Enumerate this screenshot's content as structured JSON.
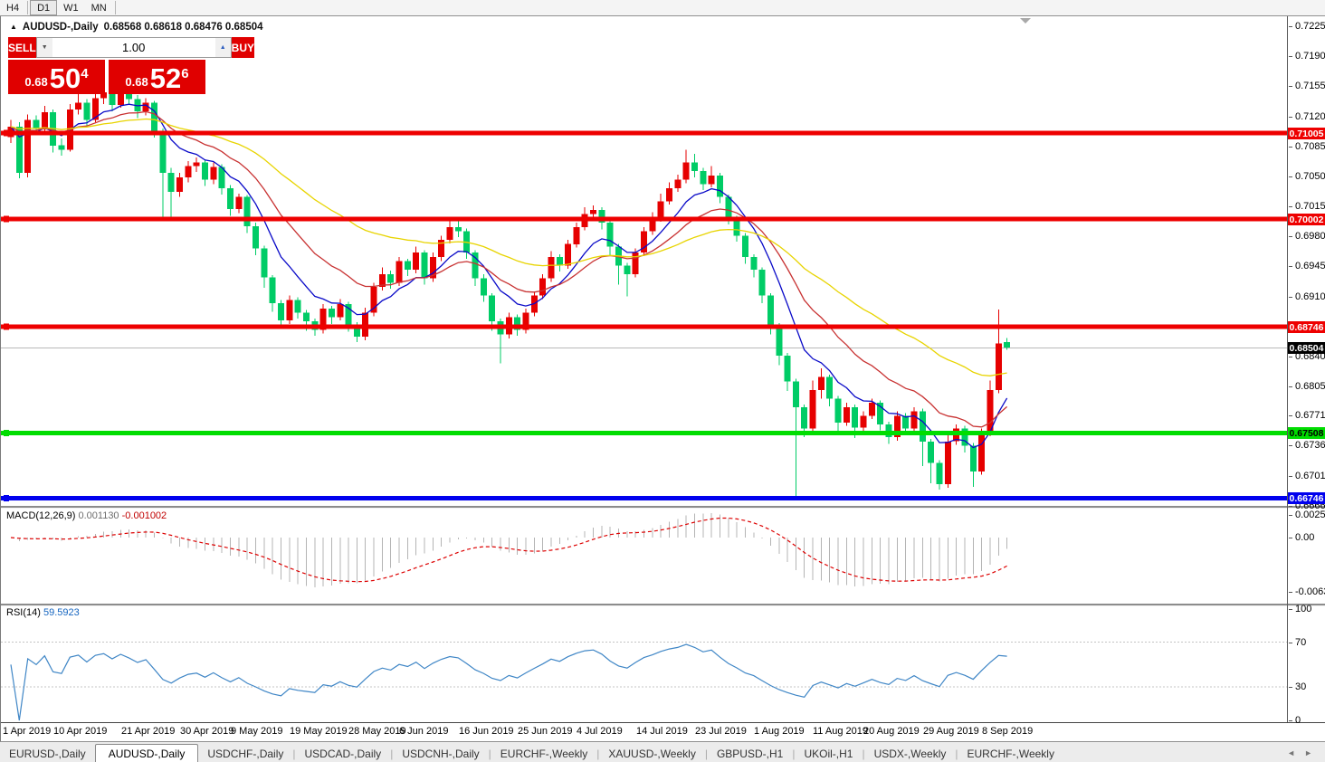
{
  "toolbar": {
    "timeframes": [
      "H4",
      "D1",
      "W1",
      "MN"
    ],
    "active": "D1"
  },
  "chart": {
    "collapse_icon": "▲",
    "title_symbol": "AUDUSD-,Daily",
    "title_ohlc": "0.68568 0.68618 0.68476 0.68504"
  },
  "trade_panel": {
    "sell_label": "SELL",
    "buy_label": "BUY",
    "volume": "1.00",
    "spin_down": "▼",
    "spin_up": "▲",
    "sell_price": {
      "small": "0.68",
      "big": "50",
      "sup": "4"
    },
    "buy_price": {
      "small": "0.68",
      "big": "52",
      "sup": "6"
    }
  },
  "price_axis": {
    "ticks": [
      "0.72250",
      "0.71900",
      "0.71550",
      "0.71200",
      "0.70850",
      "0.70500",
      "0.70150",
      "0.69800",
      "0.69450",
      "0.69100",
      "0.68750",
      "0.68400",
      "0.68050",
      "0.67710",
      "0.67360",
      "0.67010",
      "0.66660"
    ]
  },
  "current_price": {
    "value": 0.68504,
    "label": "0.68504",
    "bg": "#000000",
    "fg": "#ffffff"
  },
  "sr_lines": [
    {
      "value": 0.71005,
      "label": "0.71005",
      "color": "#ee0000",
      "text": "#ffffff"
    },
    {
      "value": 0.70002,
      "label": "0.70002",
      "color": "#ee0000",
      "text": "#ffffff"
    },
    {
      "value": 0.68746,
      "label": "0.68746",
      "color": "#ee0000",
      "text": "#ffffff"
    },
    {
      "value": 0.67508,
      "label": "0.67508",
      "color": "#00dd00",
      "text": "#000000"
    },
    {
      "value": 0.66746,
      "label": "0.66746",
      "color": "#0000ee",
      "text": "#ffffff"
    }
  ],
  "macd_panel": {
    "name": "MACD(12,26,9)",
    "value1": "0.001130",
    "value2": "-0.001002",
    "axis": [
      "0.002574",
      "0.00",
      "-0.006326"
    ],
    "histogram_color": "#b4b4b4",
    "signal_color": "#dd0000"
  },
  "rsi_panel": {
    "name": "RSI(14)",
    "value": "59.5923",
    "axis": [
      "100",
      "70",
      "30",
      "0"
    ],
    "levels": [
      70,
      30
    ],
    "line_color": "#3f86c6"
  },
  "date_axis": [
    {
      "label": "1 Apr 2019",
      "i": 0
    },
    {
      "label": "10 Apr 2019",
      "i": 6
    },
    {
      "label": "21 Apr 2019",
      "i": 14
    },
    {
      "label": "30 Apr 2019",
      "i": 21
    },
    {
      "label": "9 May 2019",
      "i": 27
    },
    {
      "label": "19 May 2019",
      "i": 34
    },
    {
      "label": "28 May 2019",
      "i": 41
    },
    {
      "label": "6 Jun 2019",
      "i": 47
    },
    {
      "label": "16 Jun 2019",
      "i": 54
    },
    {
      "label": "25 Jun 2019",
      "i": 61
    },
    {
      "label": "4 Jul 2019",
      "i": 68
    },
    {
      "label": "14 Jul 2019",
      "i": 75
    },
    {
      "label": "23 Jul 2019",
      "i": 82
    },
    {
      "label": "1 Aug 2019",
      "i": 89
    },
    {
      "label": "11 Aug 2019",
      "i": 96
    },
    {
      "label": "20 Aug 2019",
      "i": 102
    },
    {
      "label": "29 Aug 2019",
      "i": 109
    },
    {
      "label": "8 Sep 2019",
      "i": 116
    }
  ],
  "tabs": {
    "items": [
      "EURUSD-,Daily",
      "AUDUSD-,Daily",
      "USDCHF-,Daily",
      "USDCAD-,Daily",
      "USDCNH-,Daily",
      "EURCHF-,Weekly",
      "XAUUSD-,Weekly",
      "GBPUSD-,H1",
      "UKOil-,H1",
      "USDX-,Weekly",
      "EURCHF-,Weekly"
    ],
    "active_index": 1,
    "scroll_left": "◄",
    "scroll_right": "►"
  },
  "chart_data": {
    "type": "candlestick",
    "symbol": "AUDUSD",
    "timeframe": "Daily",
    "bull_color": "#e60000",
    "bear_color": "#00cc66",
    "price_range_top": 0.72334,
    "price_range_bottom": 0.6666,
    "indicators": {
      "moving_averages": [
        {
          "period": 8,
          "color": "#0a0ac8"
        },
        {
          "period": 17,
          "color": "#c83232"
        },
        {
          "period": 40,
          "color": "#e8d400"
        }
      ],
      "macd": {
        "fast": 12,
        "slow": 26,
        "signal": 9
      },
      "rsi": {
        "period": 14
      }
    },
    "ohlc": [
      [
        0.7096,
        0.7116,
        0.7089,
        0.7108
      ],
      [
        0.7108,
        0.7113,
        0.7048,
        0.7054
      ],
      [
        0.7054,
        0.7122,
        0.7049,
        0.7116
      ],
      [
        0.7116,
        0.7121,
        0.7098,
        0.7105
      ],
      [
        0.7105,
        0.7132,
        0.7101,
        0.7125
      ],
      [
        0.7125,
        0.7128,
        0.7078,
        0.7086
      ],
      [
        0.7086,
        0.7094,
        0.7074,
        0.7081
      ],
      [
        0.7081,
        0.7134,
        0.7079,
        0.7128
      ],
      [
        0.7128,
        0.7146,
        0.7122,
        0.7136
      ],
      [
        0.7136,
        0.714,
        0.7108,
        0.7116
      ],
      [
        0.7116,
        0.715,
        0.7113,
        0.7141
      ],
      [
        0.7141,
        0.7153,
        0.7134,
        0.7148
      ],
      [
        0.7148,
        0.7152,
        0.7126,
        0.7133
      ],
      [
        0.7133,
        0.7157,
        0.713,
        0.7151
      ],
      [
        0.7151,
        0.7154,
        0.7133,
        0.714
      ],
      [
        0.714,
        0.7145,
        0.7118,
        0.7126
      ],
      [
        0.7126,
        0.7141,
        0.7121,
        0.7136
      ],
      [
        0.7136,
        0.7138,
        0.7095,
        0.7102
      ],
      [
        0.7102,
        0.7106,
        0.7,
        0.7054
      ],
      [
        0.7054,
        0.706,
        0.7002,
        0.7032
      ],
      [
        0.7032,
        0.7054,
        0.7026,
        0.7049
      ],
      [
        0.7049,
        0.7068,
        0.7043,
        0.7062
      ],
      [
        0.7062,
        0.7072,
        0.7055,
        0.7066
      ],
      [
        0.7066,
        0.7069,
        0.7039,
        0.7046
      ],
      [
        0.7046,
        0.7066,
        0.7041,
        0.7061
      ],
      [
        0.7061,
        0.7064,
        0.7029,
        0.7036
      ],
      [
        0.7036,
        0.704,
        0.7004,
        0.7012
      ],
      [
        0.7012,
        0.703,
        0.7007,
        0.7026
      ],
      [
        0.7026,
        0.7028,
        0.6984,
        0.6992
      ],
      [
        0.6992,
        0.6996,
        0.6958,
        0.6966
      ],
      [
        0.6966,
        0.6969,
        0.692,
        0.6932
      ],
      [
        0.6932,
        0.6935,
        0.6892,
        0.6902
      ],
      [
        0.6902,
        0.6906,
        0.6874,
        0.6882
      ],
      [
        0.6882,
        0.6911,
        0.6878,
        0.6906
      ],
      [
        0.6906,
        0.6909,
        0.6884,
        0.6891
      ],
      [
        0.6891,
        0.6894,
        0.687,
        0.6881
      ],
      [
        0.6881,
        0.6884,
        0.6864,
        0.6871
      ],
      [
        0.6871,
        0.6901,
        0.6867,
        0.6896
      ],
      [
        0.6896,
        0.6899,
        0.6878,
        0.6886
      ],
      [
        0.6886,
        0.6907,
        0.6882,
        0.6901
      ],
      [
        0.6901,
        0.6904,
        0.6869,
        0.6876
      ],
      [
        0.6876,
        0.688,
        0.6857,
        0.6863
      ],
      [
        0.6863,
        0.6897,
        0.6859,
        0.6891
      ],
      [
        0.6891,
        0.6926,
        0.6887,
        0.6921
      ],
      [
        0.6921,
        0.6944,
        0.6917,
        0.6936
      ],
      [
        0.6936,
        0.694,
        0.6919,
        0.6926
      ],
      [
        0.6926,
        0.6956,
        0.6922,
        0.6951
      ],
      [
        0.6951,
        0.6954,
        0.6934,
        0.6941
      ],
      [
        0.6941,
        0.6968,
        0.6937,
        0.6961
      ],
      [
        0.6961,
        0.6964,
        0.6924,
        0.6931
      ],
      [
        0.6931,
        0.6961,
        0.6927,
        0.6956
      ],
      [
        0.6956,
        0.6981,
        0.6951,
        0.6976
      ],
      [
        0.6976,
        0.6999,
        0.6972,
        0.6991
      ],
      [
        0.6991,
        0.7,
        0.6979,
        0.6986
      ],
      [
        0.6986,
        0.6989,
        0.6954,
        0.6961
      ],
      [
        0.6961,
        0.6964,
        0.6922,
        0.6931
      ],
      [
        0.6931,
        0.6936,
        0.6904,
        0.6911
      ],
      [
        0.6911,
        0.6914,
        0.687,
        0.6881
      ],
      [
        0.6881,
        0.6884,
        0.6832,
        0.6866
      ],
      [
        0.6866,
        0.6891,
        0.6861,
        0.6886
      ],
      [
        0.6886,
        0.6889,
        0.6864,
        0.6871
      ],
      [
        0.6871,
        0.6896,
        0.6867,
        0.6891
      ],
      [
        0.6891,
        0.6916,
        0.6887,
        0.6911
      ],
      [
        0.6911,
        0.6936,
        0.6907,
        0.6931
      ],
      [
        0.6931,
        0.6963,
        0.6927,
        0.6956
      ],
      [
        0.6956,
        0.6959,
        0.6939,
        0.6946
      ],
      [
        0.6946,
        0.6976,
        0.6942,
        0.6971
      ],
      [
        0.6971,
        0.6996,
        0.6967,
        0.6991
      ],
      [
        0.6991,
        0.7014,
        0.6987,
        0.7006
      ],
      [
        0.7006,
        0.7016,
        0.6999,
        0.7011
      ],
      [
        0.7011,
        0.7014,
        0.6988,
        0.6996
      ],
      [
        0.6996,
        0.6999,
        0.6958,
        0.6968
      ],
      [
        0.6968,
        0.6971,
        0.6924,
        0.6946
      ],
      [
        0.6946,
        0.6949,
        0.691,
        0.6936
      ],
      [
        0.6936,
        0.6966,
        0.6932,
        0.6961
      ],
      [
        0.6961,
        0.6991,
        0.6957,
        0.6986
      ],
      [
        0.6986,
        0.7008,
        0.6982,
        0.7001
      ],
      [
        0.7001,
        0.703,
        0.6997,
        0.7021
      ],
      [
        0.7021,
        0.7043,
        0.7017,
        0.7036
      ],
      [
        0.7036,
        0.7052,
        0.7032,
        0.7046
      ],
      [
        0.7046,
        0.7081,
        0.7042,
        0.7066
      ],
      [
        0.7066,
        0.7076,
        0.7049,
        0.7056
      ],
      [
        0.7056,
        0.706,
        0.7034,
        0.7041
      ],
      [
        0.7041,
        0.7062,
        0.7037,
        0.7051
      ],
      [
        0.7051,
        0.7054,
        0.7019,
        0.7026
      ],
      [
        0.7026,
        0.7029,
        0.6994,
        0.7001
      ],
      [
        0.7001,
        0.7004,
        0.6974,
        0.6981
      ],
      [
        0.6981,
        0.6984,
        0.6948,
        0.6956
      ],
      [
        0.6956,
        0.6959,
        0.6932,
        0.6941
      ],
      [
        0.6941,
        0.6944,
        0.6902,
        0.6911
      ],
      [
        0.6911,
        0.6914,
        0.6866,
        0.6876
      ],
      [
        0.6876,
        0.6879,
        0.683,
        0.6841
      ],
      [
        0.6841,
        0.6844,
        0.68,
        0.6811
      ],
      [
        0.6811,
        0.6814,
        0.6677,
        0.6781
      ],
      [
        0.6781,
        0.6784,
        0.6746,
        0.6756
      ],
      [
        0.6756,
        0.6812,
        0.6752,
        0.6801
      ],
      [
        0.6801,
        0.6826,
        0.6791,
        0.6816
      ],
      [
        0.6816,
        0.6819,
        0.6782,
        0.6791
      ],
      [
        0.6791,
        0.6794,
        0.675,
        0.6763
      ],
      [
        0.6763,
        0.6786,
        0.6759,
        0.6781
      ],
      [
        0.6781,
        0.6784,
        0.6745,
        0.6757
      ],
      [
        0.6757,
        0.6776,
        0.6753,
        0.6771
      ],
      [
        0.6771,
        0.6791,
        0.6767,
        0.6786
      ],
      [
        0.6786,
        0.6789,
        0.6754,
        0.6761
      ],
      [
        0.6761,
        0.6764,
        0.6738,
        0.6746
      ],
      [
        0.6746,
        0.6776,
        0.6742,
        0.6771
      ],
      [
        0.6771,
        0.6774,
        0.6748,
        0.6756
      ],
      [
        0.6756,
        0.6781,
        0.6752,
        0.6776
      ],
      [
        0.6776,
        0.6779,
        0.6712,
        0.6741
      ],
      [
        0.6741,
        0.6744,
        0.6692,
        0.6716
      ],
      [
        0.6716,
        0.6719,
        0.6685,
        0.6691
      ],
      [
        0.6691,
        0.6748,
        0.6687,
        0.6741
      ],
      [
        0.6741,
        0.6761,
        0.6737,
        0.6756
      ],
      [
        0.6756,
        0.6759,
        0.6728,
        0.6736
      ],
      [
        0.6736,
        0.6739,
        0.6688,
        0.6706
      ],
      [
        0.6706,
        0.6756,
        0.6702,
        0.6751
      ],
      [
        0.6751,
        0.6812,
        0.6747,
        0.6801
      ],
      [
        0.6801,
        0.6895,
        0.6797,
        0.6855
      ],
      [
        0.68568,
        0.68618,
        0.68476,
        0.68504
      ]
    ]
  }
}
